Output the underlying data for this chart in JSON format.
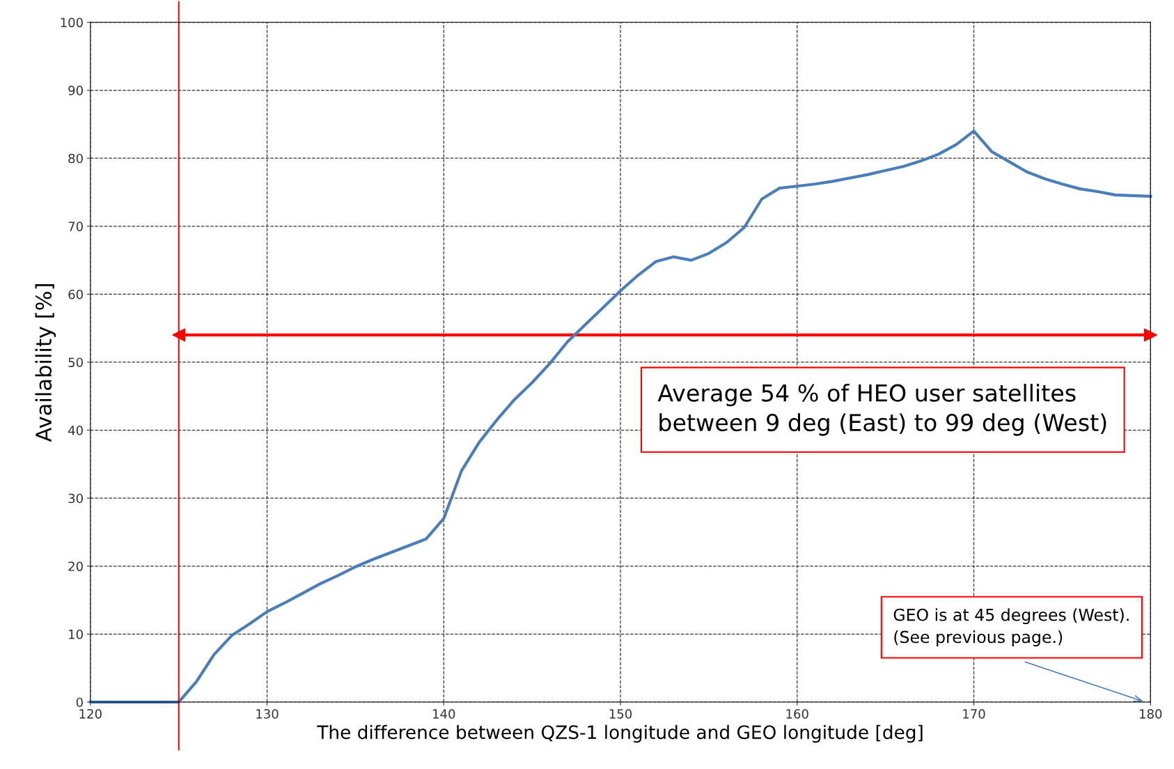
{
  "chart_data": {
    "type": "line",
    "xlabel": "The difference between QZS-1 longitude and GEO longitude [deg]",
    "ylabel": "Availability [%]",
    "x": [
      120,
      125,
      126,
      127,
      128,
      129,
      130,
      131,
      132,
      133,
      134,
      135,
      136,
      137,
      138,
      139,
      140,
      141,
      142,
      143,
      144,
      145,
      146,
      147,
      148,
      149,
      150,
      151,
      152,
      153,
      154,
      155,
      156,
      157,
      158,
      159,
      160,
      161,
      162,
      163,
      164,
      165,
      166,
      167,
      168,
      169,
      170,
      171,
      172,
      173,
      174,
      175,
      176,
      177,
      178,
      179,
      180
    ],
    "series": [
      {
        "type": "line",
        "x": [
          125,
          180
        ],
        "values": [
          54,
          54
        ],
        "color": "#ff0000",
        "marker": "triangle"
      },
      {
        "color": "#4a7ebb",
        "values": [
          0,
          0,
          3,
          7,
          9.8,
          11.5,
          13.3,
          14.6,
          16,
          17.4,
          18.6,
          19.9,
          21,
          22,
          23,
          24,
          27,
          34,
          38.2,
          41.5,
          44.5,
          47,
          49.8,
          53,
          55.5,
          58,
          60.5,
          62.8,
          64.8,
          65.5,
          65,
          66,
          67.6,
          69.8,
          74,
          75.6,
          75.9,
          76.2,
          76.6,
          77.1,
          77.6,
          78.2,
          78.8,
          79.6,
          80.6,
          82,
          84,
          81,
          79.5,
          78,
          77,
          76.2,
          75.5,
          75.1,
          74.6,
          74.5,
          74.4
        ]
      }
    ],
    "xlim": [
      120,
      180
    ],
    "ylim": [
      0,
      100
    ],
    "xticks": [
      120,
      130,
      140,
      150,
      160,
      170,
      180
    ],
    "yticks": [
      0,
      10,
      20,
      30,
      40,
      50,
      60,
      70,
      80,
      90,
      100
    ],
    "grid": true,
    "line_style": "solid",
    "marker": "none",
    "ref_lines": [
      {
        "axis": "x",
        "value": 125,
        "color": "#ff0000",
        "line_style": "solid"
      }
    ],
    "annotations": [
      "Average 54 % of HEO user satellites\nbetween 9 deg (East) to 99 deg (West)",
      "GEO is at 45 degrees (West).\n(See previous page.)"
    ]
  }
}
